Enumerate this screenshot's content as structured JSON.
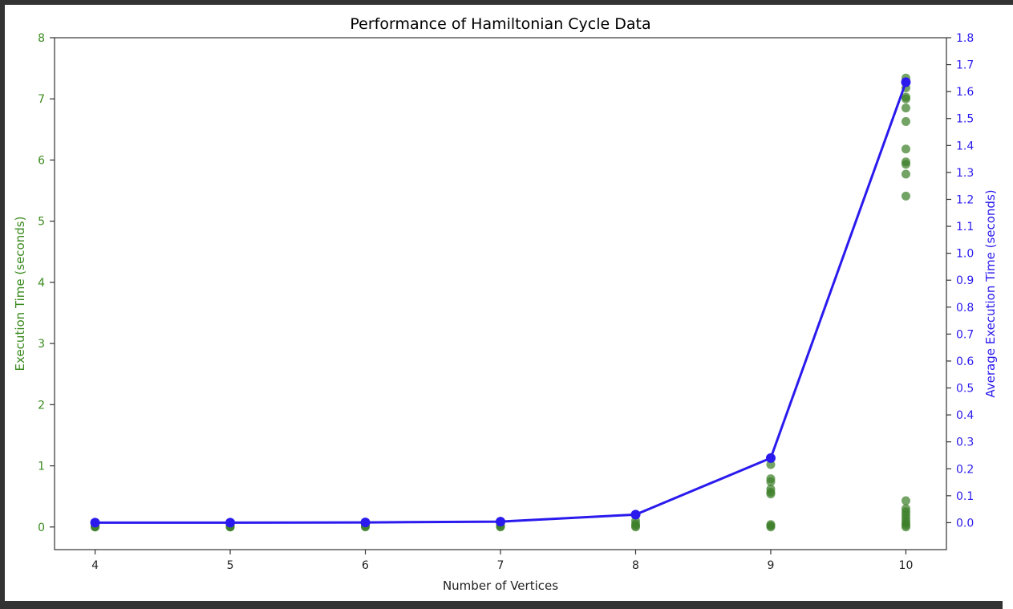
{
  "chart_data": {
    "type": "scatter",
    "title": "Performance of Hamiltonian Cycle Data",
    "xlabel": "Number of Vertices",
    "ylabel_left": "Execution Time (seconds)",
    "ylabel_right": "Average Execution Time (seconds)",
    "x_ticks": [
      4,
      5,
      6,
      7,
      8,
      9,
      10
    ],
    "xlim": [
      3.7,
      10.3
    ],
    "y_left_ticks": [
      0,
      1,
      2,
      3,
      4,
      5,
      6,
      7,
      8
    ],
    "y_left_lim": [
      -0.37,
      8
    ],
    "y_right_ticks": [
      0.0,
      0.1,
      0.2,
      0.3,
      0.4,
      0.5,
      0.6,
      0.7,
      0.8,
      0.9,
      1.0,
      1.1,
      1.2,
      1.3,
      1.4,
      1.5,
      1.6,
      1.7,
      1.8
    ],
    "y_right_lim": [
      -0.1,
      1.8
    ],
    "colors": {
      "left_axis": "#3a8a1e",
      "right_axis": "#2a1aee",
      "scatter": "#3d7f2a",
      "line": "#2a1aee",
      "frame": "#333333"
    },
    "series": [
      {
        "axis": "left",
        "kind": "scatter",
        "points": [
          [
            4,
            0.0
          ],
          [
            4,
            0.0
          ],
          [
            4,
            0.01
          ],
          [
            5,
            0.0
          ],
          [
            5,
            0.0
          ],
          [
            5,
            0.01
          ],
          [
            6,
            0.0
          ],
          [
            6,
            0.01
          ],
          [
            6,
            0.02
          ],
          [
            7,
            0.0
          ],
          [
            7,
            0.01
          ],
          [
            7,
            0.03
          ],
          [
            8,
            0.0
          ],
          [
            8,
            0.02
          ],
          [
            8,
            0.05
          ],
          [
            8,
            0.1
          ],
          [
            9,
            0.0
          ],
          [
            9,
            0.02
          ],
          [
            9,
            0.04
          ],
          [
            9,
            0.54
          ],
          [
            9,
            0.57
          ],
          [
            9,
            0.62
          ],
          [
            9,
            0.74
          ],
          [
            9,
            0.79
          ],
          [
            9,
            1.02
          ],
          [
            10,
            0.0
          ],
          [
            10,
            0.03
          ],
          [
            10,
            0.06
          ],
          [
            10,
            0.1
          ],
          [
            10,
            0.15
          ],
          [
            10,
            0.2
          ],
          [
            10,
            0.25
          ],
          [
            10,
            0.3
          ],
          [
            10,
            0.43
          ],
          [
            10,
            5.41
          ],
          [
            10,
            5.77
          ],
          [
            10,
            5.93
          ],
          [
            10,
            5.97
          ],
          [
            10,
            6.18
          ],
          [
            10,
            6.63
          ],
          [
            10,
            6.85
          ],
          [
            10,
            7.0
          ],
          [
            10,
            7.03
          ],
          [
            10,
            7.18
          ],
          [
            10,
            7.34
          ]
        ]
      },
      {
        "axis": "right",
        "kind": "line",
        "x": [
          4,
          5,
          6,
          7,
          8,
          9,
          10
        ],
        "y": [
          0.0,
          0.0,
          0.001,
          0.004,
          0.03,
          0.24,
          1.635
        ]
      }
    ]
  }
}
